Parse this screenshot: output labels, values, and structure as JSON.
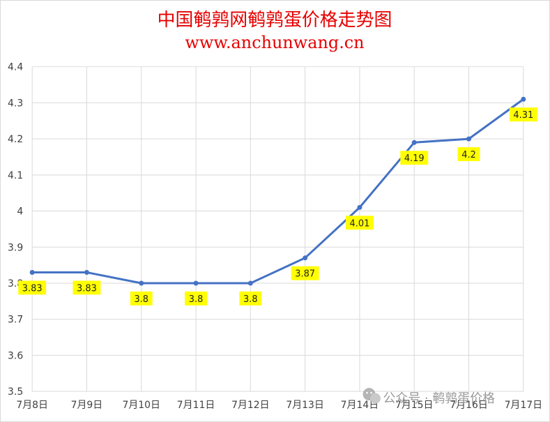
{
  "chart_data": {
    "type": "line",
    "title": "中国鹌鹑网鹌鹑蛋价格走势图",
    "subtitle": "www.anchunwang.cn",
    "xlabel": "",
    "ylabel": "",
    "categories": [
      "7月8日",
      "7月9日",
      "7月10日",
      "7月11日",
      "7月12日",
      "7月13日",
      "7月14日",
      "7月15日",
      "7月16日",
      "7月17日"
    ],
    "series": [
      {
        "values": [
          3.83,
          3.83,
          3.8,
          3.8,
          3.8,
          3.87,
          4.01,
          4.19,
          4.2,
          4.31
        ]
      }
    ],
    "data_labels": [
      "3.83",
      "3.83",
      "3.8",
      "3.8",
      "3.8",
      "3.87",
      "4.01",
      "4.19",
      "4.2",
      "4.31"
    ],
    "ylim": [
      3.5,
      4.4
    ],
    "yticks": [
      "3.5",
      "3.6",
      "3.7",
      "3.8",
      "3.9",
      "4",
      "4.1",
      "4.2",
      "4.3",
      "4.4"
    ],
    "grid": true,
    "legend": "none",
    "colors": {
      "line": "#4472c4",
      "label_bg": "#ffff00",
      "title": "#e60000",
      "grid": "#d9d9d9"
    }
  },
  "watermark": {
    "text": "公众号 · 鹌鹑蛋价格",
    "icon": "wechat-icon"
  }
}
